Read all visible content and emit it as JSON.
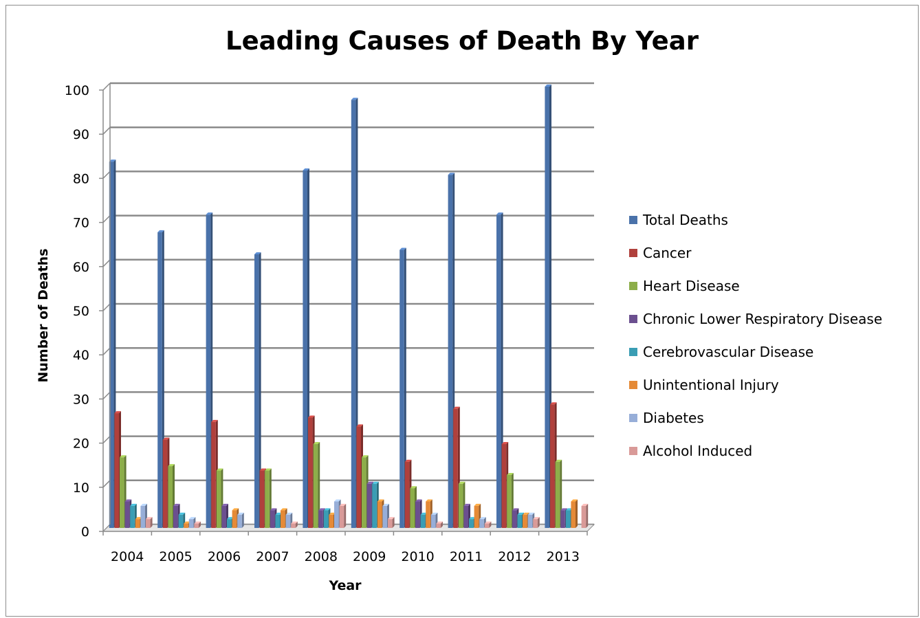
{
  "chart_data": {
    "type": "bar",
    "title": "Leading Causes of Death By Year",
    "xlabel": "Year",
    "ylabel": "Number of Deaths",
    "ylim": [
      0,
      100
    ],
    "yticks": [
      "0",
      "10",
      "20",
      "30",
      "40",
      "50",
      "60",
      "70",
      "80",
      "90",
      "100"
    ],
    "grid": true,
    "legend_position": "right",
    "categories": [
      "2004",
      "2005",
      "2006",
      "2007",
      "2008",
      "2009",
      "2010",
      "2011",
      "2012",
      "2013"
    ],
    "series": [
      {
        "name": "Total Deaths",
        "color": "#4a72aa",
        "values": [
          83,
          67,
          71,
          62,
          81,
          97,
          63,
          80,
          71,
          100
        ]
      },
      {
        "name": "Cancer",
        "color": "#b0403c",
        "values": [
          26,
          20,
          24,
          13,
          25,
          23,
          15,
          27,
          19,
          28
        ]
      },
      {
        "name": "Heart Disease",
        "color": "#8dae4a",
        "values": [
          16,
          14,
          13,
          13,
          19,
          16,
          9,
          10,
          12,
          15
        ]
      },
      {
        "name": "Chronic Lower Respiratory Disease",
        "color": "#6b4f8f",
        "values": [
          6,
          5,
          5,
          4,
          4,
          10,
          6,
          5,
          4,
          4
        ]
      },
      {
        "name": "Cerebrovascular Disease",
        "color": "#3a9db4",
        "values": [
          5,
          3,
          2,
          3,
          4,
          10,
          3,
          2,
          3,
          4
        ]
      },
      {
        "name": "Unintentional Injury",
        "color": "#e58a37",
        "values": [
          2,
          1,
          4,
          4,
          3,
          6,
          6,
          5,
          3,
          6
        ]
      },
      {
        "name": "Diabetes",
        "color": "#97aed8",
        "values": [
          5,
          2,
          3,
          3,
          6,
          5,
          3,
          2,
          3,
          0
        ]
      },
      {
        "name": "Alcohol Induced",
        "color": "#d99a98",
        "values": [
          2,
          1,
          0,
          1,
          5,
          2,
          1,
          1,
          2,
          5
        ]
      }
    ]
  }
}
